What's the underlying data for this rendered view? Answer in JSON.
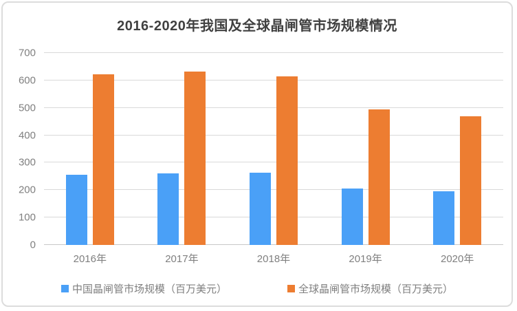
{
  "chart": {
    "title": "2016-2020年我国及全球晶闸管市场规模情况"
  },
  "chart_data": {
    "type": "bar",
    "title": "2016-2020年我国及全球晶闸管市场规模情况",
    "categories": [
      "2016年",
      "2017年",
      "2018年",
      "2019年",
      "2020年"
    ],
    "series": [
      {
        "name": "中国晶闸管市场规模（百万美元）",
        "color": "#4AA0F7",
        "values": [
          255,
          262,
          263,
          205,
          195
        ]
      },
      {
        "name": "全球晶闸管市场规模（百万美元）",
        "color": "#ED7D31",
        "values": [
          622,
          632,
          615,
          494,
          468
        ]
      }
    ],
    "xlabel": "",
    "ylabel": "",
    "ylim": [
      0,
      700
    ],
    "yticks": [
      0,
      100,
      200,
      300,
      400,
      500,
      600,
      700
    ],
    "grid": true,
    "legend_position": "bottom"
  }
}
